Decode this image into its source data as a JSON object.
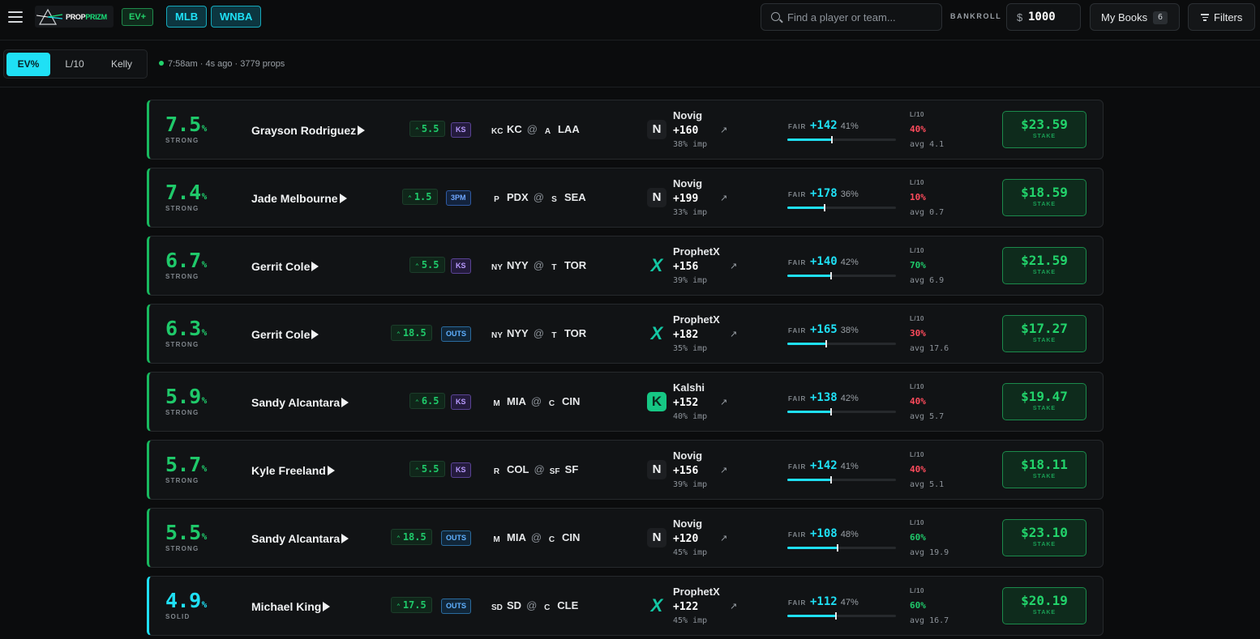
{
  "header": {
    "logo": {
      "word1": "PROP",
      "word2": "PRIZM"
    },
    "ev_badge": "EV+",
    "leagues": [
      "MLB",
      "WNBA"
    ],
    "search_placeholder": "Find a player or team...",
    "bankroll_label": "BANKROLL",
    "bankroll_currency": "$",
    "bankroll_value": "1000",
    "mybooks_label": "My Books",
    "mybooks_count": "6",
    "filters_label": "Filters"
  },
  "sort": {
    "options": [
      "EV%",
      "L/10",
      "Kelly"
    ],
    "active": "EV%"
  },
  "status_text": "7:58am · 4s ago · 3779 props",
  "colors": {
    "accent_cyan": "#1fe0f5",
    "accent_green": "#22d36b",
    "bad_red": "#ff4b5c"
  },
  "rows": [
    {
      "ev": "7.5",
      "pct": "%",
      "tier": "STRONG",
      "player": "Grayson Rodriguez",
      "line": "5.5",
      "market": "KS",
      "market_type": "ks",
      "away_icon": "KC",
      "away": "KC",
      "home_icon": "A",
      "home": "LAA",
      "book": "Novig",
      "book_type": "novig",
      "book_icon": "N",
      "odds": "+160",
      "imp": "38% imp",
      "fair_label": "FAIR",
      "fair": "+142",
      "fair_pct": "41%",
      "fair_fill": 0.41,
      "l10_label": "L/10",
      "l10": "40%",
      "l10_status": "bad",
      "avg": "avg 4.1",
      "stake": "$23.59",
      "stake_label": "STAKE"
    },
    {
      "ev": "7.4",
      "pct": "%",
      "tier": "STRONG",
      "player": "Jade Melbourne",
      "line": "1.5",
      "market": "3PM",
      "market_type": "tpm",
      "away_icon": "P",
      "away": "PDX",
      "home_icon": "S",
      "home": "SEA",
      "book": "Novig",
      "book_type": "novig",
      "book_icon": "N",
      "odds": "+199",
      "imp": "33% imp",
      "fair_label": "FAIR",
      "fair": "+178",
      "fair_pct": "36%",
      "fair_fill": 0.34,
      "l10_label": "L/10",
      "l10": "10%",
      "l10_status": "bad",
      "avg": "avg 0.7",
      "stake": "$18.59",
      "stake_label": "STAKE"
    },
    {
      "ev": "6.7",
      "pct": "%",
      "tier": "STRONG",
      "player": "Gerrit Cole",
      "line": "5.5",
      "market": "KS",
      "market_type": "ks",
      "away_icon": "NY",
      "away": "NYY",
      "home_icon": "T",
      "home": "TOR",
      "book": "ProphetX",
      "book_type": "prophetx",
      "book_icon": "X",
      "odds": "+156",
      "imp": "39% imp",
      "fair_label": "FAIR",
      "fair": "+140",
      "fair_pct": "42%",
      "fair_fill": 0.4,
      "l10_label": "L/10",
      "l10": "70%",
      "l10_status": "good",
      "avg": "avg 6.9",
      "stake": "$21.59",
      "stake_label": "STAKE"
    },
    {
      "ev": "6.3",
      "pct": "%",
      "tier": "STRONG",
      "player": "Gerrit Cole",
      "line": "18.5",
      "market": "OUTS",
      "market_type": "outs",
      "away_icon": "NY",
      "away": "NYY",
      "home_icon": "T",
      "home": "TOR",
      "book": "ProphetX",
      "book_type": "prophetx",
      "book_icon": "X",
      "odds": "+182",
      "imp": "35% imp",
      "fair_label": "FAIR",
      "fair": "+165",
      "fair_pct": "38%",
      "fair_fill": 0.36,
      "l10_label": "L/10",
      "l10": "30%",
      "l10_status": "bad",
      "avg": "avg 17.6",
      "stake": "$17.27",
      "stake_label": "STAKE"
    },
    {
      "ev": "5.9",
      "pct": "%",
      "tier": "STRONG",
      "player": "Sandy Alcantara",
      "line": "6.5",
      "market": "KS",
      "market_type": "ks",
      "away_icon": "M",
      "away": "MIA",
      "home_icon": "C",
      "home": "CIN",
      "book": "Kalshi",
      "book_type": "kalshi",
      "book_icon": "K",
      "odds": "+152",
      "imp": "40% imp",
      "fair_label": "FAIR",
      "fair": "+138",
      "fair_pct": "42%",
      "fair_fill": 0.4,
      "l10_label": "L/10",
      "l10": "40%",
      "l10_status": "bad",
      "avg": "avg 5.7",
      "stake": "$19.47",
      "stake_label": "STAKE"
    },
    {
      "ev": "5.7",
      "pct": "%",
      "tier": "STRONG",
      "player": "Kyle Freeland",
      "line": "5.5",
      "market": "KS",
      "market_type": "ks",
      "away_icon": "R",
      "away": "COL",
      "home_icon": "SF",
      "home": "SF",
      "book": "Novig",
      "book_type": "novig",
      "book_icon": "N",
      "odds": "+156",
      "imp": "39% imp",
      "fair_label": "FAIR",
      "fair": "+142",
      "fair_pct": "41%",
      "fair_fill": 0.4,
      "l10_label": "L/10",
      "l10": "40%",
      "l10_status": "bad",
      "avg": "avg 5.1",
      "stake": "$18.11",
      "stake_label": "STAKE"
    },
    {
      "ev": "5.5",
      "pct": "%",
      "tier": "STRONG",
      "player": "Sandy Alcantara",
      "line": "18.5",
      "market": "OUTS",
      "market_type": "outs",
      "away_icon": "M",
      "away": "MIA",
      "home_icon": "C",
      "home": "CIN",
      "book": "Novig",
      "book_type": "novig",
      "book_icon": "N",
      "odds": "+120",
      "imp": "45% imp",
      "fair_label": "FAIR",
      "fair": "+108",
      "fair_pct": "48%",
      "fair_fill": 0.46,
      "l10_label": "L/10",
      "l10": "60%",
      "l10_status": "good",
      "avg": "avg 19.9",
      "stake": "$23.10",
      "stake_label": "STAKE"
    },
    {
      "ev": "4.9",
      "pct": "%",
      "tier": "SOLID",
      "player": "Michael King",
      "line": "17.5",
      "market": "OUTS",
      "market_type": "outs",
      "away_icon": "SD",
      "away": "SD",
      "home_icon": "C",
      "home": "CLE",
      "book": "ProphetX",
      "book_type": "prophetx",
      "book_icon": "X",
      "odds": "+122",
      "imp": "45% imp",
      "fair_label": "FAIR",
      "fair": "+112",
      "fair_pct": "47%",
      "fair_fill": 0.45,
      "l10_label": "L/10",
      "l10": "60%",
      "l10_status": "good",
      "avg": "avg 16.7",
      "stake": "$20.19",
      "stake_label": "STAKE"
    }
  ]
}
